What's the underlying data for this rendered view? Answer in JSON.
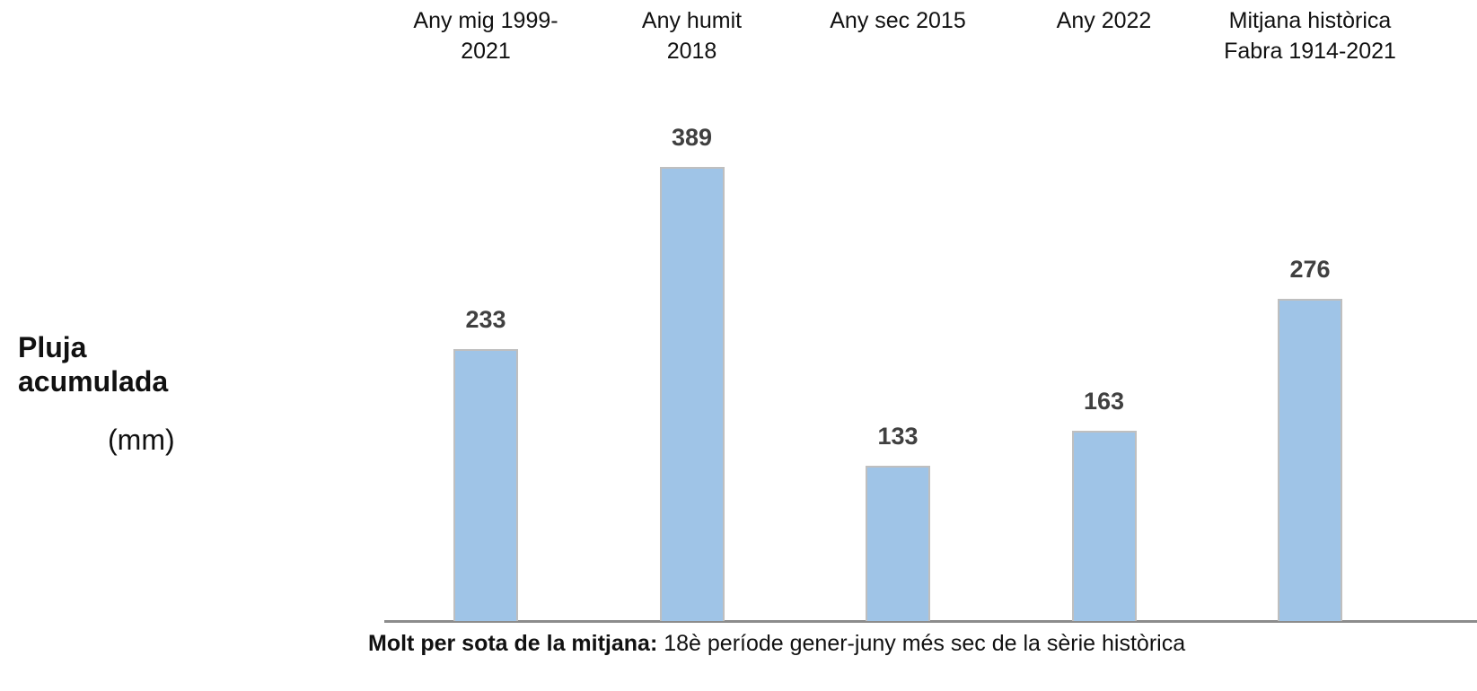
{
  "chart_data": {
    "type": "bar",
    "y_label": "Pluja\nacumulada",
    "y_unit": "(mm)",
    "categories": [
      "Any mig 1999-\n2021",
      "Any humit\n2018",
      "Any sec 2015",
      "Any 2022",
      "Mitjana històrica\nFabra 1914-2021"
    ],
    "values": [
      233,
      389,
      133,
      163,
      276
    ],
    "color": "#9fc4e7",
    "footnote_bold": "Molt per sota de la mitjana:",
    "footnote": " 18è període gener-juny més sec de la sèrie històrica"
  }
}
